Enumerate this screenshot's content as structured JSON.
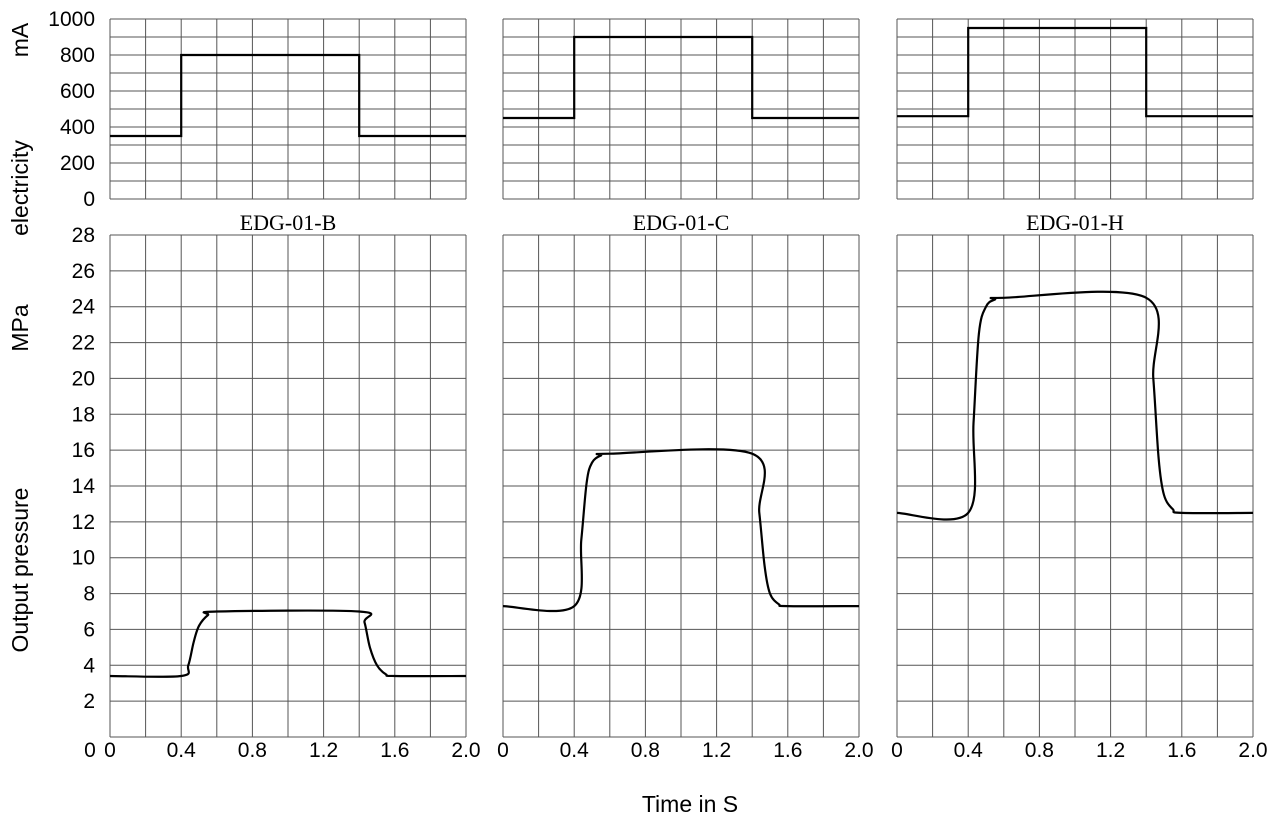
{
  "chart_data": {
    "type": "line",
    "xlabel": "Time in S",
    "x_ticks": [
      "0",
      "0.4",
      "0.8",
      "1.2",
      "1.6",
      "2.0"
    ],
    "xlim": [
      0,
      2.0
    ],
    "current_axis": {
      "label": "electricity",
      "unit": "mA",
      "ylim": [
        0,
        1000
      ],
      "ticks": [
        "0",
        "200",
        "400",
        "600",
        "800",
        "1000"
      ]
    },
    "pressure_axis": {
      "label": "Output pressure",
      "unit": "MPa",
      "ylim": [
        0,
        28
      ],
      "ticks": [
        "0",
        "2",
        "4",
        "6",
        "8",
        "10",
        "12",
        "14",
        "16",
        "18",
        "20",
        "22",
        "24",
        "26",
        "28"
      ]
    },
    "panels": [
      {
        "title": "EDG-01-B",
        "current": [
          [
            0,
            350
          ],
          [
            0.4,
            350
          ],
          [
            0.4,
            800
          ],
          [
            1.4,
            800
          ],
          [
            1.4,
            350
          ],
          [
            2.0,
            350
          ]
        ],
        "pressure": [
          [
            0,
            3.4
          ],
          [
            0.4,
            3.4
          ],
          [
            0.44,
            4.0
          ],
          [
            0.47,
            5.3
          ],
          [
            0.5,
            6.2
          ],
          [
            0.55,
            6.8
          ],
          [
            0.6,
            7.0
          ],
          [
            1.4,
            7.0
          ],
          [
            1.43,
            6.4
          ],
          [
            1.46,
            5.0
          ],
          [
            1.5,
            4.0
          ],
          [
            1.55,
            3.5
          ],
          [
            1.6,
            3.4
          ],
          [
            2.0,
            3.4
          ]
        ]
      },
      {
        "title": "EDG-01-C",
        "current": [
          [
            0,
            450
          ],
          [
            0.4,
            450
          ],
          [
            0.4,
            900
          ],
          [
            1.4,
            900
          ],
          [
            1.4,
            450
          ],
          [
            2.0,
            450
          ]
        ],
        "pressure": [
          [
            0,
            7.3
          ],
          [
            0.4,
            7.3
          ],
          [
            0.44,
            11.0
          ],
          [
            0.47,
            14.2
          ],
          [
            0.5,
            15.3
          ],
          [
            0.55,
            15.7
          ],
          [
            0.6,
            15.8
          ],
          [
            1.4,
            15.8
          ],
          [
            1.44,
            12.5
          ],
          [
            1.47,
            9.5
          ],
          [
            1.5,
            8.0
          ],
          [
            1.55,
            7.4
          ],
          [
            1.6,
            7.3
          ],
          [
            2.0,
            7.3
          ]
        ]
      },
      {
        "title": "EDG-01-H",
        "current": [
          [
            0,
            460
          ],
          [
            0.4,
            460
          ],
          [
            0.4,
            950
          ],
          [
            1.4,
            950
          ],
          [
            1.4,
            460
          ],
          [
            2.0,
            460
          ]
        ],
        "pressure": [
          [
            0,
            12.5
          ],
          [
            0.4,
            12.5
          ],
          [
            0.43,
            17.5
          ],
          [
            0.46,
            22.5
          ],
          [
            0.5,
            24.0
          ],
          [
            0.55,
            24.4
          ],
          [
            0.6,
            24.5
          ],
          [
            1.4,
            24.5
          ],
          [
            1.44,
            20.0
          ],
          [
            1.47,
            15.5
          ],
          [
            1.5,
            13.5
          ],
          [
            1.55,
            12.7
          ],
          [
            1.6,
            12.5
          ],
          [
            2.0,
            12.5
          ]
        ]
      }
    ]
  }
}
